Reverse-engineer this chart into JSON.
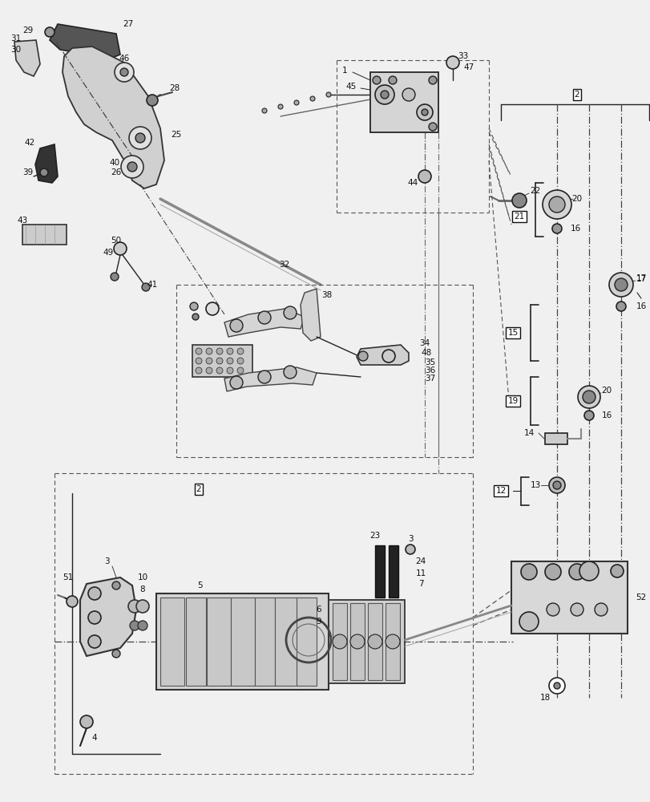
{
  "bg_color": "#f0f0f0",
  "fig_width": 8.12,
  "fig_height": 10.0,
  "dpi": 100,
  "line_color": "#222222",
  "label_fontsize": 7.5
}
